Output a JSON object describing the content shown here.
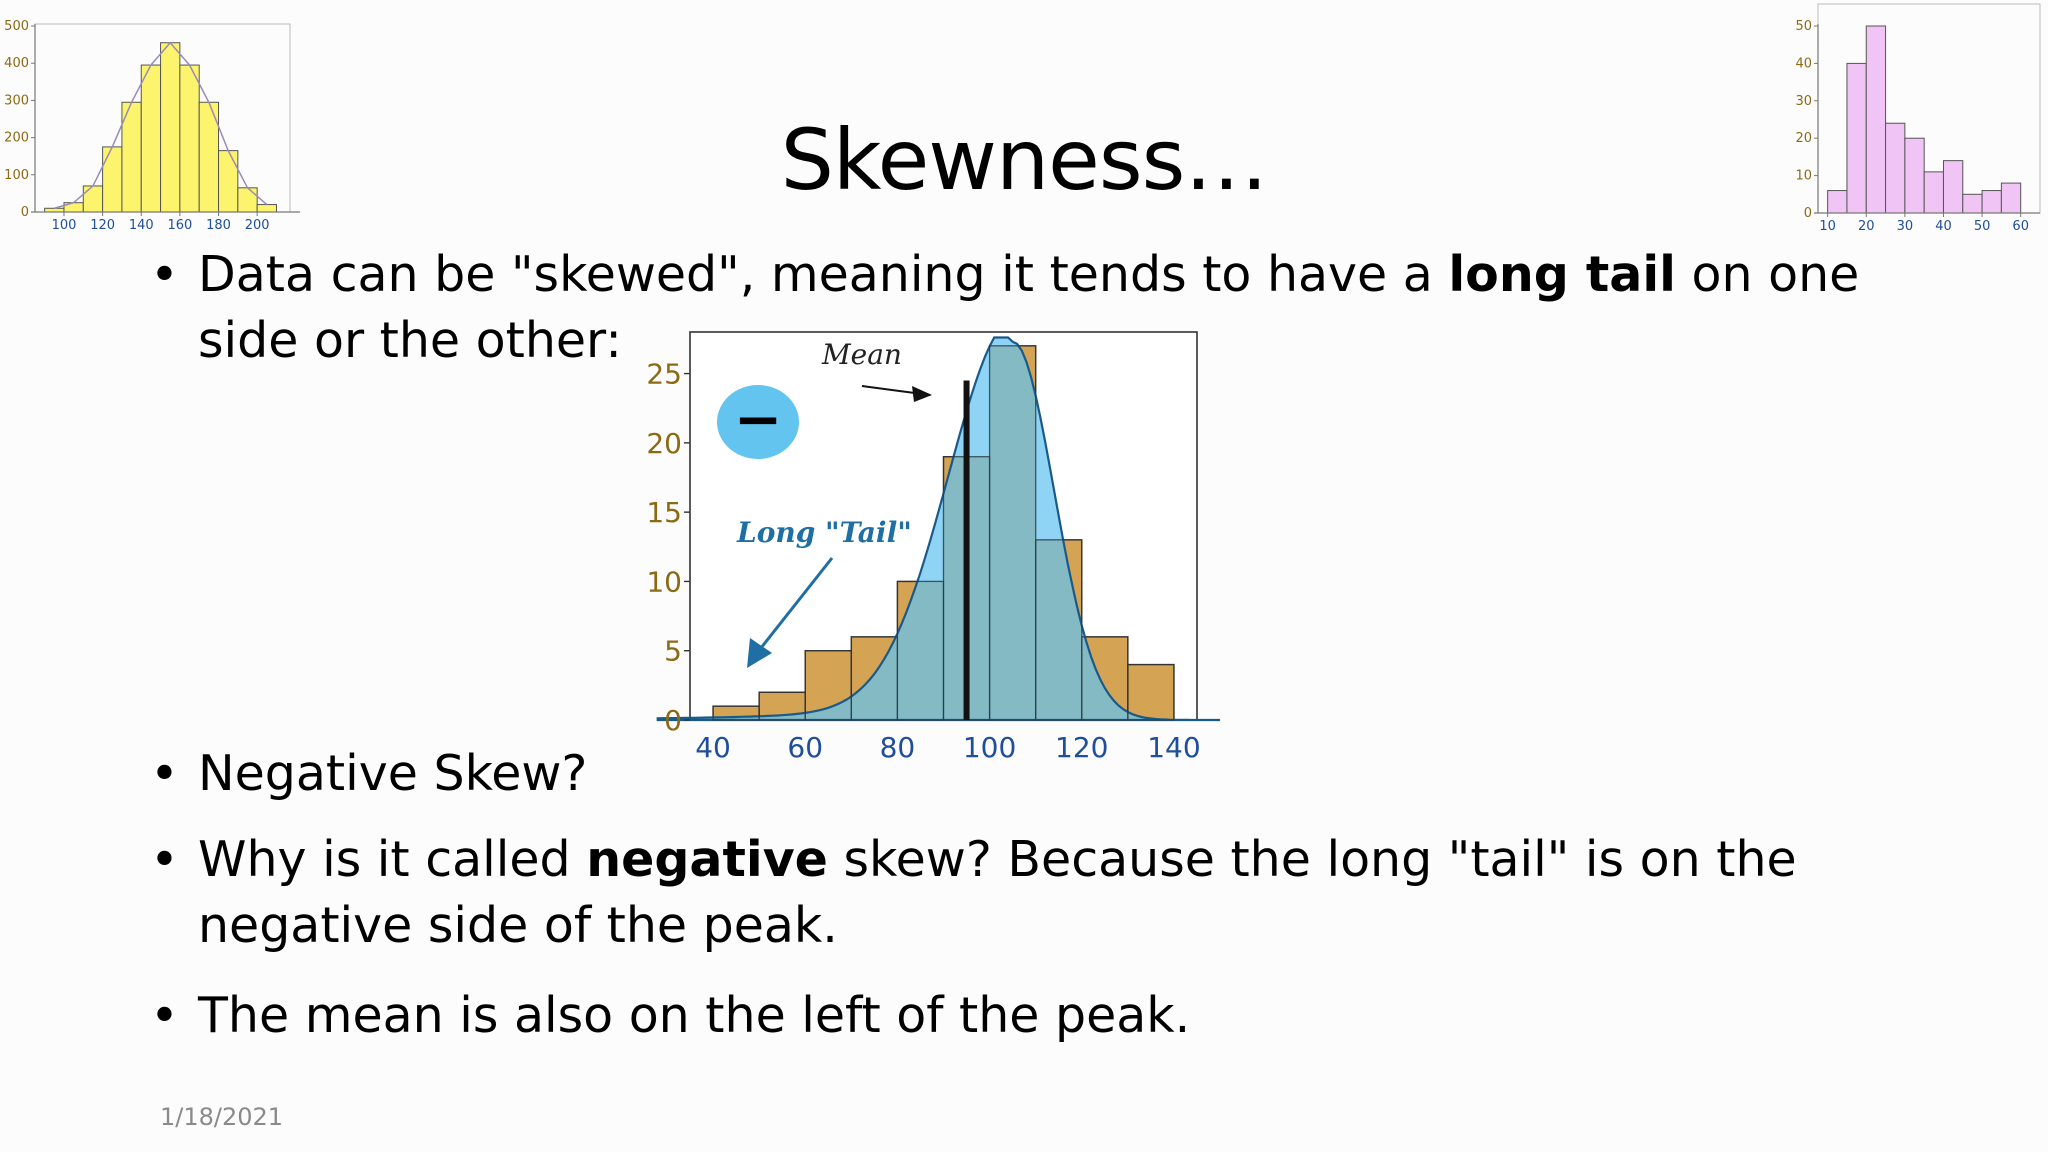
{
  "slide": {
    "title": "Skewness…",
    "date": "1/18/2021",
    "bullets": [
      {
        "pre": "Data can be \"skewed\", meaning it tends to have a ",
        "bold": "long tail",
        "post": " on one side or the other:"
      },
      {
        "text": "Negative Skew?"
      },
      {
        "pre": "Why is it called ",
        "bold": "negative",
        "post": " skew? Because the long \"tail\" is on the negative side of the peak."
      },
      {
        "text": "The mean is also on the left of the peak."
      }
    ]
  },
  "colors": {
    "left_bars": "#fcf46c",
    "right_bars": "#f0c4f4",
    "main_bars": "#d4a354",
    "curve_fill": "#64c4f0",
    "minus_badge": "#64c4f0",
    "annotation": "#1f6ea4",
    "axis_tick_text": "#1f4e9c",
    "y_tick_text": "#8c6a14"
  },
  "chart_data": [
    {
      "type": "bar",
      "position": "top-left thumbnail",
      "x_tick_labels": [
        "100",
        "120",
        "140",
        "160",
        "180",
        "200"
      ],
      "y_tick_labels": [
        "0",
        "100",
        "200",
        "300",
        "400",
        "500"
      ],
      "bin_edges": [
        90,
        100,
        110,
        120,
        130,
        140,
        150,
        160,
        170,
        180,
        190,
        200,
        210
      ],
      "values": [
        10,
        25,
        70,
        175,
        295,
        395,
        455,
        395,
        295,
        165,
        65,
        20
      ],
      "ylim": [
        0,
        500
      ]
    },
    {
      "type": "bar",
      "position": "top-right thumbnail",
      "x_tick_labels": [
        "10",
        "20",
        "30",
        "40",
        "50",
        "60"
      ],
      "y_tick_labels": [
        "0",
        "10",
        "20",
        "30",
        "40",
        "50"
      ],
      "bin_edges": [
        10,
        15,
        20,
        25,
        30,
        35,
        40,
        45,
        50,
        55,
        60
      ],
      "values": [
        6,
        40,
        50,
        24,
        20,
        11,
        14,
        5,
        6,
        8
      ],
      "ylim": [
        0,
        50
      ]
    },
    {
      "type": "bar",
      "position": "center",
      "x_tick_labels": [
        "40",
        "60",
        "80",
        "100",
        "120",
        "140"
      ],
      "y_tick_labels": [
        "0",
        "5",
        "10",
        "15",
        "20",
        "25"
      ],
      "bin_edges": [
        40,
        50,
        60,
        70,
        80,
        90,
        100,
        110,
        120,
        130,
        140
      ],
      "values": [
        1,
        2,
        5,
        6,
        10,
        19,
        27,
        13,
        6,
        4
      ],
      "ylim": [
        0,
        28
      ],
      "mean": 95,
      "annotations": [
        "Mean",
        "Long \"Tail\""
      ],
      "badge": "−"
    }
  ]
}
